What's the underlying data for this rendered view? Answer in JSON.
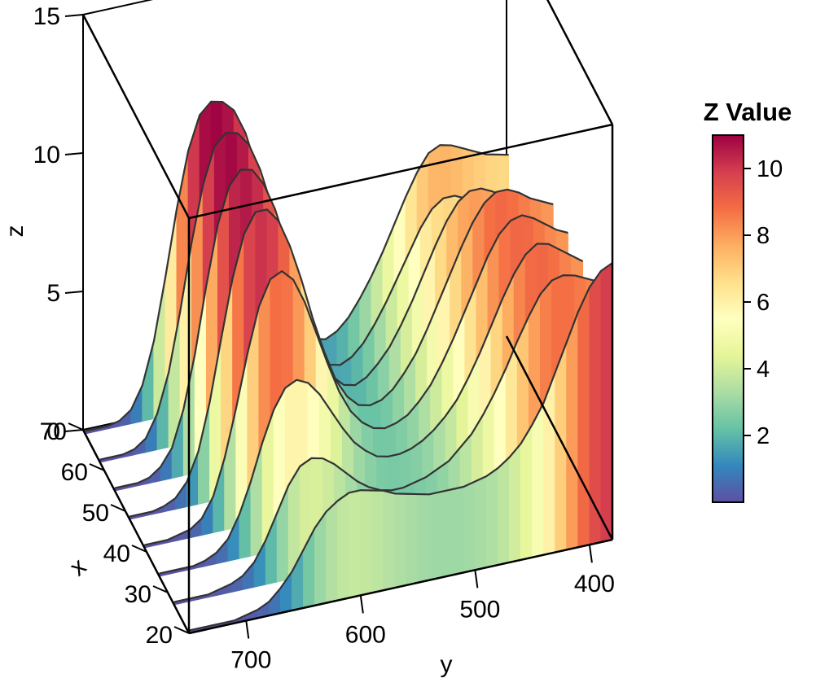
{
  "chart_data": {
    "type": "3d-ribbon-waterfall",
    "x_axis": {
      "label": "x",
      "ticks": [
        20,
        30,
        40,
        50,
        60,
        70
      ]
    },
    "y_axis": {
      "label": "y",
      "ticks": [
        700,
        600,
        500,
        400
      ],
      "range": [
        750,
        380
      ]
    },
    "z_axis": {
      "label": "z",
      "ticks": [
        0,
        5,
        10,
        15
      ],
      "range": [
        0,
        15
      ]
    },
    "legend": {
      "title": "Z Value",
      "ticks": [
        2,
        4,
        6,
        8,
        10
      ],
      "range": [
        0,
        11
      ],
      "placement": "right",
      "colors": [
        "#5E4FA2",
        "#3288BD",
        "#66C2A5",
        "#ABDDA4",
        "#E6F598",
        "#FFFFBF",
        "#FEE08B",
        "#FDAE61",
        "#F46D43",
        "#D53E4F",
        "#9E0142"
      ]
    },
    "y_values": [
      750,
      740,
      730,
      720,
      710,
      700,
      690,
      680,
      670,
      660,
      650,
      640,
      630,
      620,
      610,
      600,
      590,
      580,
      570,
      560,
      550,
      540,
      530,
      520,
      510,
      500,
      490,
      480,
      470,
      460,
      450,
      440,
      430,
      420,
      410,
      400,
      390,
      380
    ],
    "series": [
      {
        "x": 20,
        "z": [
          0.1,
          0.1,
          0.1,
          0.1,
          0.1,
          0.2,
          0.3,
          0.5,
          0.9,
          1.4,
          2.1,
          2.8,
          3.3,
          3.6,
          3.8,
          3.8,
          3.7,
          3.6,
          3.4,
          3.3,
          3.2,
          3.1,
          3.1,
          3.1,
          3.1,
          3.2,
          3.3,
          3.5,
          3.8,
          4.2,
          4.8,
          5.5,
          6.5,
          7.5,
          8.5,
          9.3,
          9.8,
          10.0
        ]
      },
      {
        "x": 27,
        "z": [
          0.1,
          0.1,
          0.1,
          0.1,
          0.2,
          0.3,
          0.5,
          0.9,
          1.6,
          2.5,
          3.4,
          4.0,
          4.2,
          4.1,
          3.8,
          3.4,
          3.0,
          2.7,
          2.5,
          2.4,
          2.4,
          2.5,
          2.6,
          2.8,
          3.0,
          3.4,
          3.8,
          4.4,
          5.1,
          5.9,
          6.8,
          7.6,
          8.3,
          8.7,
          8.8,
          8.7,
          8.5,
          8.3
        ]
      },
      {
        "x": 34,
        "z": [
          0.1,
          0.1,
          0.1,
          0.1,
          0.2,
          0.4,
          0.8,
          1.6,
          2.7,
          4.0,
          5.1,
          5.8,
          6.0,
          5.8,
          5.3,
          4.6,
          3.9,
          3.3,
          2.9,
          2.6,
          2.5,
          2.5,
          2.6,
          2.8,
          3.1,
          3.5,
          4.0,
          4.7,
          5.5,
          6.4,
          7.3,
          8.1,
          8.7,
          9.0,
          8.9,
          8.6,
          8.3,
          8.0
        ]
      },
      {
        "x": 41,
        "z": [
          0.1,
          0.1,
          0.1,
          0.2,
          0.3,
          0.6,
          1.3,
          2.6,
          4.3,
          6.2,
          7.8,
          8.7,
          8.9,
          8.5,
          7.6,
          6.4,
          5.2,
          4.1,
          3.3,
          2.8,
          2.5,
          2.4,
          2.5,
          2.7,
          3.1,
          3.6,
          4.3,
          5.1,
          6.0,
          6.9,
          7.8,
          8.5,
          8.9,
          9.0,
          8.8,
          8.5,
          8.2,
          8.0
        ]
      },
      {
        "x": 48,
        "z": [
          0.1,
          0.1,
          0.1,
          0.2,
          0.4,
          0.9,
          1.9,
          3.6,
          5.8,
          7.9,
          9.4,
          10.1,
          10.1,
          9.6,
          8.6,
          7.3,
          5.8,
          4.5,
          3.4,
          2.7,
          2.3,
          2.2,
          2.3,
          2.6,
          3.1,
          3.7,
          4.5,
          5.4,
          6.3,
          7.2,
          8.0,
          8.6,
          8.9,
          8.9,
          8.7,
          8.4,
          8.2,
          8.0
        ]
      },
      {
        "x": 55,
        "z": [
          0.1,
          0.1,
          0.1,
          0.2,
          0.5,
          1.1,
          2.4,
          4.3,
          6.7,
          8.8,
          10.1,
          10.6,
          10.5,
          9.9,
          8.9,
          7.5,
          5.9,
          4.4,
          3.2,
          2.4,
          2.0,
          1.9,
          2.1,
          2.5,
          3.0,
          3.7,
          4.5,
          5.4,
          6.3,
          7.1,
          7.7,
          8.0,
          8.0,
          7.8,
          7.5,
          7.3,
          7.2,
          7.1
        ]
      },
      {
        "x": 62,
        "z": [
          0.1,
          0.1,
          0.1,
          0.2,
          0.5,
          1.3,
          2.7,
          4.8,
          7.2,
          9.2,
          10.5,
          10.9,
          10.8,
          10.3,
          9.3,
          7.9,
          6.2,
          4.5,
          3.1,
          2.2,
          1.7,
          1.6,
          1.8,
          2.2,
          2.8,
          3.5,
          4.3,
          5.1,
          5.9,
          6.5,
          6.8,
          6.8,
          6.6,
          6.4,
          6.2,
          6.0,
          5.9,
          5.8
        ]
      },
      {
        "x": 69,
        "z": [
          0.1,
          0.1,
          0.1,
          0.2,
          0.5,
          1.3,
          2.8,
          5.0,
          7.4,
          9.4,
          10.6,
          11.0,
          10.9,
          10.5,
          9.6,
          8.2,
          6.4,
          4.6,
          3.1,
          2.1,
          1.6,
          1.5,
          1.7,
          2.1,
          2.7,
          3.4,
          4.2,
          5.1,
          6.0,
          6.8,
          7.4,
          7.6,
          7.5,
          7.3,
          7.1,
          6.9,
          6.8,
          6.7
        ]
      }
    ]
  }
}
